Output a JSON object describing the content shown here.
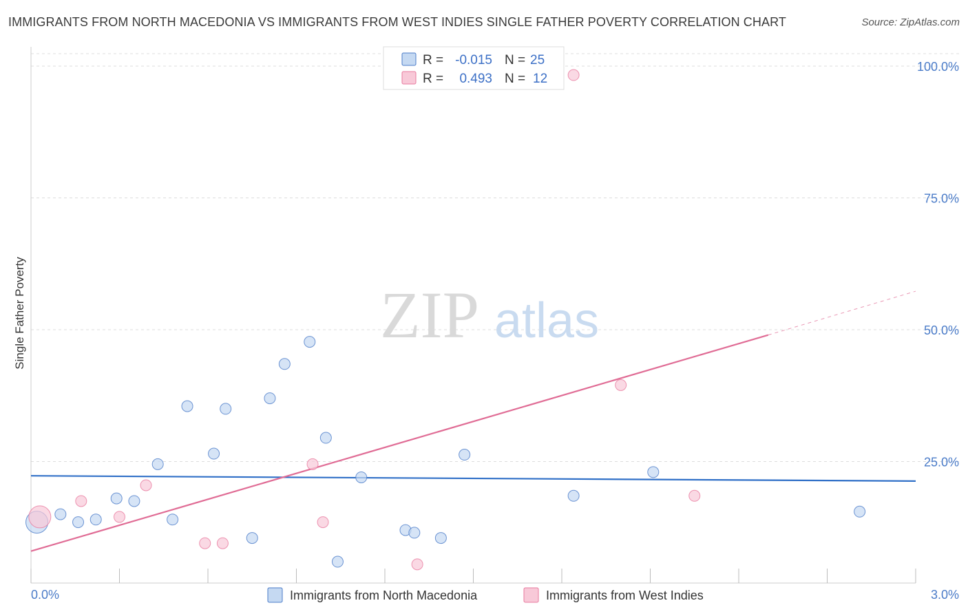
{
  "title": "IMMIGRANTS FROM NORTH MACEDONIA VS IMMIGRANTS FROM WEST INDIES SINGLE FATHER POVERTY CORRELATION CHART",
  "source": "Source: ZipAtlas.com",
  "colors": {
    "blue": "#4a7bc8",
    "blue_fill": "#c5d9f2",
    "blue_line": "#2f6fc7",
    "pink": "#e8799e",
    "pink_fill": "#f8c9d8",
    "pink_line": "#e06c95"
  },
  "watermark": {
    "zip": "ZIP",
    "atlas": "atlas"
  },
  "legend": {
    "rows": [
      {
        "r_label": "R =",
        "r_value": "-0.015",
        "n_label": "N =",
        "n_value": "25"
      },
      {
        "r_label": "R =",
        "r_value": "0.493",
        "n_label": "N =",
        "n_value": "12"
      }
    ]
  },
  "chart_data": {
    "type": "scatter",
    "title": "IMMIGRANTS FROM NORTH MACEDONIA VS IMMIGRANTS FROM WEST INDIES SINGLE FATHER POVERTY CORRELATION CHART",
    "xlabel": "",
    "ylabel": "Single Father Poverty",
    "xlim": [
      0,
      3.0
    ],
    "ylim": [
      0,
      100
    ],
    "x_tick_labels": [
      "0.0%",
      "3.0%"
    ],
    "y_ticks": [
      25,
      50,
      75,
      100
    ],
    "y_tick_labels": [
      "25.0%",
      "50.0%",
      "75.0%",
      "100.0%"
    ],
    "grid": true,
    "series": [
      {
        "name": "Immigrants from North Macedonia",
        "color": "blue",
        "points": [
          {
            "x": 0.02,
            "y": 13.5,
            "big": true
          },
          {
            "x": 0.1,
            "y": 15.0
          },
          {
            "x": 0.16,
            "y": 13.5
          },
          {
            "x": 0.22,
            "y": 14.0
          },
          {
            "x": 0.29,
            "y": 18.0
          },
          {
            "x": 0.35,
            "y": 17.5
          },
          {
            "x": 0.43,
            "y": 24.5
          },
          {
            "x": 0.48,
            "y": 14.0
          },
          {
            "x": 0.53,
            "y": 35.5
          },
          {
            "x": 0.62,
            "y": 26.5
          },
          {
            "x": 0.66,
            "y": 35.0
          },
          {
            "x": 0.75,
            "y": 10.5
          },
          {
            "x": 0.81,
            "y": 37.0
          },
          {
            "x": 0.86,
            "y": 43.5
          },
          {
            "x": 0.945,
            "y": 47.7
          },
          {
            "x": 1.0,
            "y": 29.5
          },
          {
            "x": 1.04,
            "y": 6.0
          },
          {
            "x": 1.12,
            "y": 22.0
          },
          {
            "x": 1.27,
            "y": 12.0
          },
          {
            "x": 1.3,
            "y": 11.5
          },
          {
            "x": 1.39,
            "y": 10.5
          },
          {
            "x": 1.47,
            "y": 26.3
          },
          {
            "x": 1.84,
            "y": 18.5
          },
          {
            "x": 2.11,
            "y": 23.0
          },
          {
            "x": 2.81,
            "y": 15.5
          }
        ],
        "trend": {
          "x0": 0,
          "y0": 22.3,
          "x1": 3.0,
          "y1": 21.3
        }
      },
      {
        "name": "Immigrants from West Indies",
        "color": "pink",
        "points": [
          {
            "x": 0.03,
            "y": 14.5,
            "big": true
          },
          {
            "x": 0.17,
            "y": 17.5
          },
          {
            "x": 0.3,
            "y": 14.5
          },
          {
            "x": 0.39,
            "y": 20.5
          },
          {
            "x": 0.59,
            "y": 9.5
          },
          {
            "x": 0.65,
            "y": 9.5
          },
          {
            "x": 0.955,
            "y": 24.5
          },
          {
            "x": 0.99,
            "y": 13.5
          },
          {
            "x": 1.31,
            "y": 5.5
          },
          {
            "x": 1.84,
            "y": 98.3
          },
          {
            "x": 2.0,
            "y": 39.5
          },
          {
            "x": 2.25,
            "y": 18.5
          }
        ],
        "trend": {
          "x0": 0,
          "y0": 8.0,
          "x1": 2.5,
          "y1": 49.0,
          "x_ext": 3.0,
          "y_ext": 57.3
        }
      }
    ]
  }
}
